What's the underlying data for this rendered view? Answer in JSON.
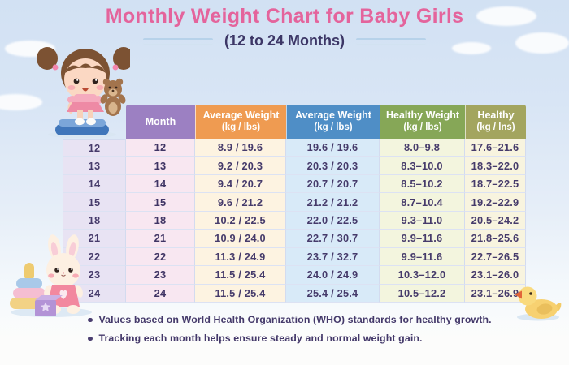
{
  "page": {
    "title": "Monthly Weight Chart for Baby Girls",
    "subtitle": "(12 to 24 Months)"
  },
  "colors": {
    "title_pink": "#e4649c",
    "subtitle_navy": "#3c3666",
    "table_text": "#463b6b",
    "sky": "#d2e1f3"
  },
  "table": {
    "headers": [
      {
        "label": "Month",
        "sub": "",
        "color": "#9c80c2"
      },
      {
        "label": "Average Weight",
        "sub": "(kg / lbs)",
        "color": "#ef9b51"
      },
      {
        "label": "Average Weight",
        "sub": "(kg / lbs)",
        "color": "#4f8ec6"
      },
      {
        "label": "Healthy Weight",
        "sub": "(kg / lbs)",
        "color": "#86a757"
      },
      {
        "label": "Healthy",
        "sub": "(kg / lns)",
        "color": "#a3a55f"
      }
    ],
    "column_colors": [
      "#e8e3f3",
      "#f8e7f1",
      "#fdf3e1",
      "#d8eaf8",
      "#f3f5de",
      "#f8f4df"
    ],
    "rows": [
      {
        "index": "12",
        "month": "12",
        "avg1": "8.9 / 19.6",
        "avg2": "19.6 / 19.6",
        "healthy1": "8.0–9.8",
        "healthy2": "17.6–21.6"
      },
      {
        "index": "13",
        "month": "13",
        "avg1": "9.2 / 20.3",
        "avg2": "20.3 / 20.3",
        "healthy1": "8.3–10.0",
        "healthy2": "18.3–22.0"
      },
      {
        "index": "14",
        "month": "14",
        "avg1": "9.4 / 20.7",
        "avg2": "20.7 / 20.7",
        "healthy1": "8.5–10.2",
        "healthy2": "18.7–22.5"
      },
      {
        "index": "15",
        "month": "15",
        "avg1": "9.6 / 21.2",
        "avg2": "21.2 / 21.2",
        "healthy1": "8.7–10.4",
        "healthy2": "19.2–22.9"
      },
      {
        "index": "18",
        "month": "18",
        "avg1": "10.2 / 22.5",
        "avg2": "22.0 / 22.5",
        "healthy1": "9.3–11.0",
        "healthy2": "20.5–24.2"
      },
      {
        "index": "21",
        "month": "21",
        "avg1": "10.9 / 24.0",
        "avg2": "22.7 / 30.7",
        "healthy1": "9.9–11.6",
        "healthy2": "21.8–25.6"
      },
      {
        "index": "22",
        "month": "22",
        "avg1": "11.3 / 24.9",
        "avg2": "23.7 / 32.7",
        "healthy1": "9.9–11.6",
        "healthy2": "22.7–26.5"
      },
      {
        "index": "23",
        "month": "23",
        "avg1": "11.5 / 25.4",
        "avg2": "24.0 / 24.9",
        "healthy1": "10.3–12.0",
        "healthy2": "23.1–26.0"
      },
      {
        "index": "24",
        "month": "24",
        "avg1": "11.5 / 25.4",
        "avg2": "25.4 / 25.4",
        "healthy1": "10.5–12.2",
        "healthy2": "23.1–26.9"
      }
    ]
  },
  "notes": [
    "Values based on World Health Organization (WHO) standards for healthy growth.",
    "Tracking each month helps ensure steady and normal weight gain."
  ],
  "chart_data": {
    "type": "table",
    "title": "Monthly Weight Chart for Baby Girls",
    "subtitle": "(12 to 24 Months)",
    "columns": [
      "",
      "Month",
      "Average Weight (kg / lbs)",
      "Average Weight (kg / lbs)",
      "Healthy Weight (kg / lbs)",
      "Healthy (kg / lns)"
    ],
    "rows": [
      [
        "12",
        "12",
        "8.9 / 19.6",
        "19.6 / 19.6",
        "8.0–9.8",
        "17.6–21.6"
      ],
      [
        "13",
        "13",
        "9.2 / 20.3",
        "20.3 / 20.3",
        "8.3–10.0",
        "18.3–22.0"
      ],
      [
        "14",
        "14",
        "9.4 / 20.7",
        "20.7 / 20.7",
        "8.5–10.2",
        "18.7–22.5"
      ],
      [
        "15",
        "15",
        "9.6 / 21.2",
        "21.2 / 21.2",
        "8.7–10.4",
        "19.2–22.9"
      ],
      [
        "18",
        "18",
        "10.2 / 22.5",
        "22.0 / 22.5",
        "9.3–11.0",
        "20.5–24.2"
      ],
      [
        "21",
        "21",
        "10.9 / 24.0",
        "22.7 / 30.7",
        "9.9–11.6",
        "21.8–25.6"
      ],
      [
        "22",
        "22",
        "11.3 / 24.9",
        "23.7 / 32.7",
        "9.9–11.6",
        "22.7–26.5"
      ],
      [
        "23",
        "23",
        "11.5 / 25.4",
        "24.0 / 24.9",
        "10.3–12.0",
        "23.1–26.0"
      ],
      [
        "24",
        "24",
        "11.5 / 25.4",
        "25.4 / 25.4",
        "10.5–12.2",
        "23.1–26.9"
      ]
    ],
    "notes": [
      "Values based on World Health Organization (WHO) standards for healthy growth.",
      "Tracking each month helps ensure steady and normal weight gain."
    ]
  }
}
